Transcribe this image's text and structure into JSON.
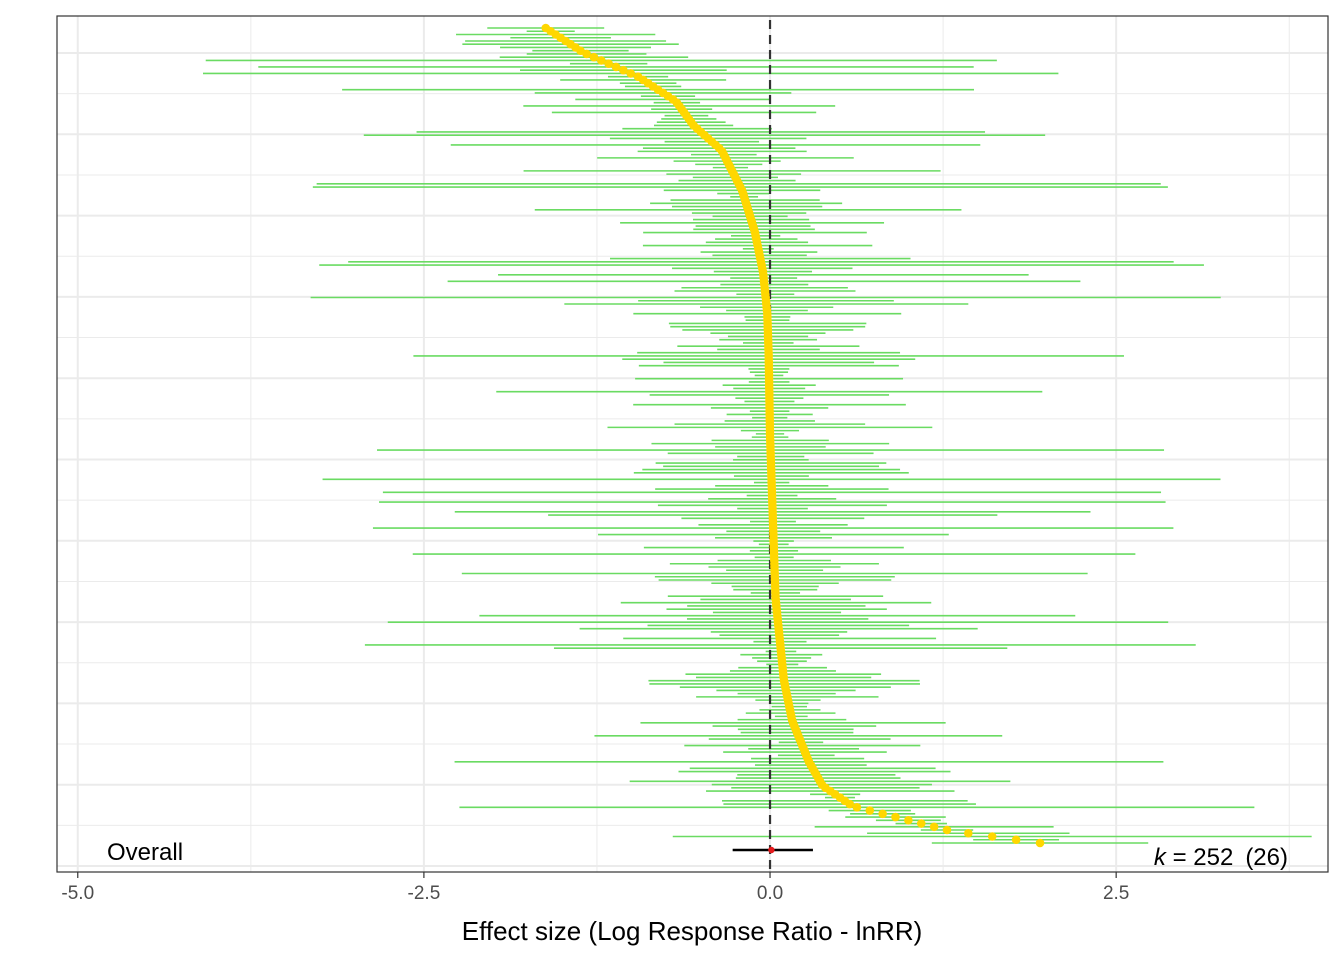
{
  "chart_data": {
    "type": "forest",
    "xlabel": "Effect size (Log Response Ratio - lnRR)",
    "xlim": [
      -5.15,
      4.03
    ],
    "x_ticks": [
      -5.0,
      -2.5,
      0.0,
      2.5
    ],
    "x_tick_labels": [
      "-5.0",
      "-2.5",
      "0.0",
      "2.5"
    ],
    "reference_line_x": 0.0,
    "overall": {
      "label": "Overall",
      "estimate": 0.01,
      "ci_low": -0.27,
      "ci_high": 0.31
    },
    "k_annotation": {
      "k_symbol": "k",
      "equals": " = ",
      "k_value": "252",
      "clusters": "(26)"
    },
    "n_effects": 252,
    "grid": true,
    "colors": {
      "ci_lines": "#6adb62",
      "points": "#ffd700",
      "overall_line": "#000000",
      "overall_point": "#e41a1c",
      "reference_line": "#333333",
      "grid": "#ebebeb",
      "panel_border": "#333333"
    }
  }
}
